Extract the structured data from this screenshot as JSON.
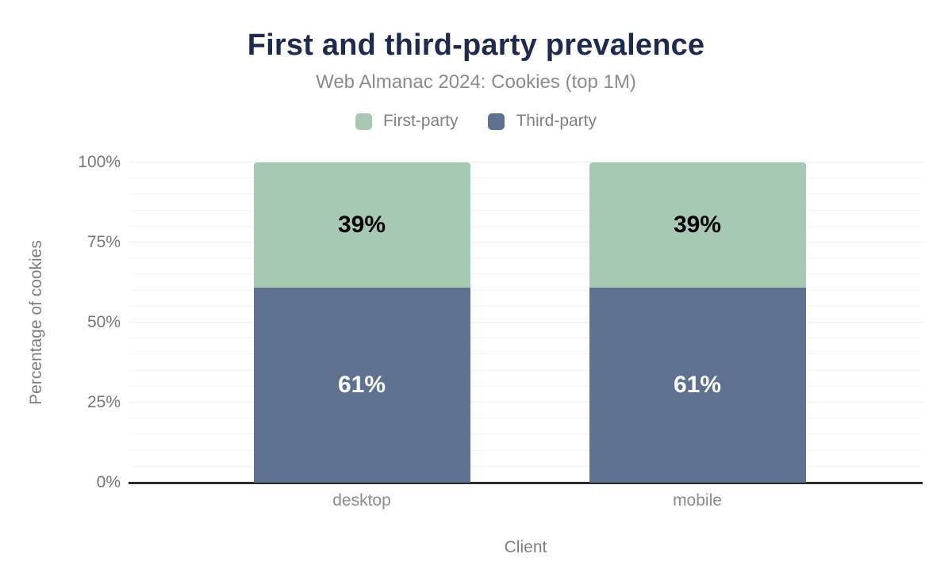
{
  "header": {
    "title": "First and third-party prevalence",
    "subtitle": "Web Almanac 2024: Cookies (top 1M)"
  },
  "axes": {
    "x_title": "Client",
    "y_title": "Percentage of cookies"
  },
  "colors": {
    "title": "#1f2b4e",
    "subtitle_gray": "#8b8b8b",
    "axis_line": "#2a2a2a",
    "first_party": "#a7c9b4",
    "third_party": "#5e7190"
  },
  "chart_data": {
    "type": "bar",
    "stacked": true,
    "title": "First and third-party prevalence",
    "subtitle": "Web Almanac 2024: Cookies (top 1M)",
    "xlabel": "Client",
    "ylabel": "Percentage of cookies",
    "categories": [
      "desktop",
      "mobile"
    ],
    "series": [
      {
        "name": "First-party",
        "color": "#a7c9b4",
        "text_color": "#000000",
        "values": [
          39,
          39
        ]
      },
      {
        "name": "Third-party",
        "color": "#5e7190",
        "text_color": "#ffffff",
        "values": [
          61,
          61
        ]
      }
    ],
    "value_suffix": "%",
    "ylim": [
      0,
      100
    ],
    "y_ticks": [
      {
        "value": 0,
        "label": "0%"
      },
      {
        "value": 25,
        "label": "25%"
      },
      {
        "value": 50,
        "label": "50%"
      },
      {
        "value": 75,
        "label": "75%"
      },
      {
        "value": 100,
        "label": "100%"
      }
    ],
    "y_minor_step": 5,
    "grid": "on",
    "legend_position": "top"
  }
}
